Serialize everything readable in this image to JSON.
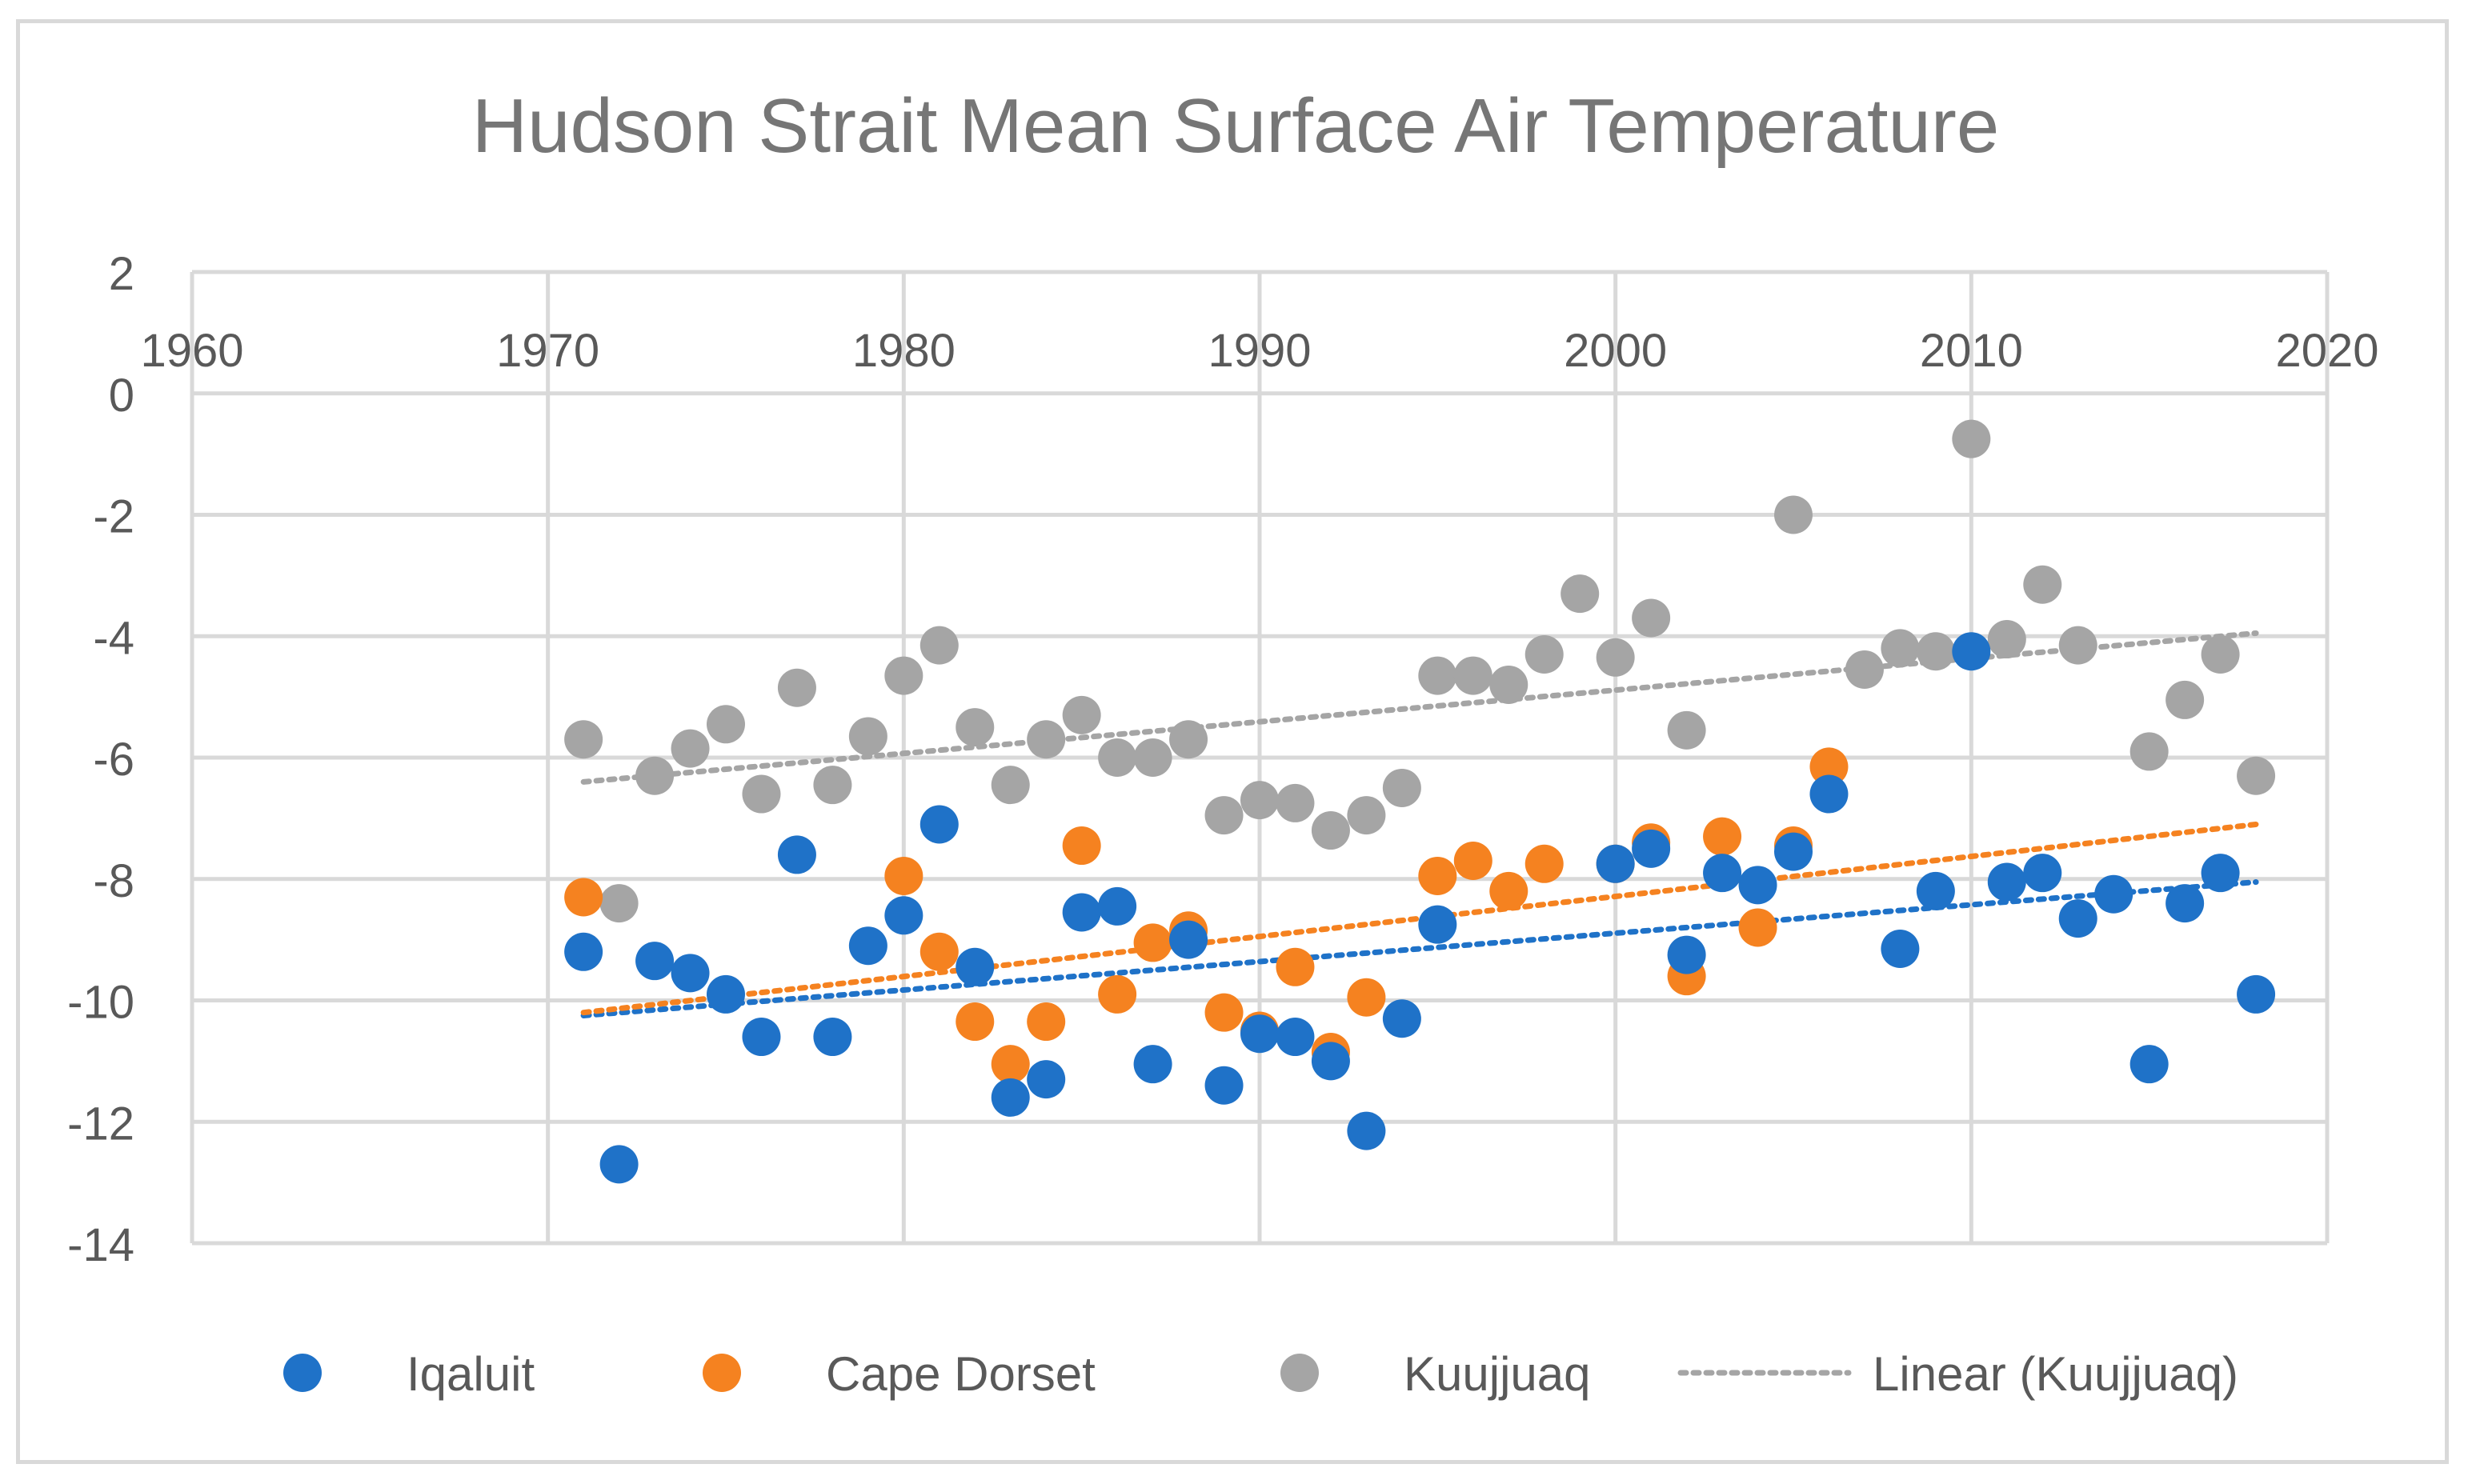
{
  "chart_data": {
    "type": "scatter",
    "title": "Hudson Strait Mean Surface Air Temperature",
    "xlim": [
      1960,
      2020
    ],
    "ylim": [
      -14,
      2
    ],
    "x_ticks": [
      1960,
      1970,
      1980,
      1990,
      2000,
      2010,
      2020
    ],
    "y_ticks": [
      2,
      0,
      -2,
      -4,
      -6,
      -8,
      -10,
      -12,
      -14
    ],
    "x_axis_position": "top (at y = 2)",
    "grid": true,
    "legend_position": "bottom",
    "series": [
      {
        "name": "Iqaluit",
        "color": "#1f72c8",
        "x": [
          1971,
          1972,
          1973,
          1974,
          1975,
          1976,
          1977,
          1978,
          1979,
          1980,
          1981,
          1982,
          1983,
          1984,
          1985,
          1986,
          1987,
          1988,
          1989,
          1990,
          1991,
          1992,
          1993,
          1994,
          1995,
          2000,
          2001,
          2002,
          2003,
          2004,
          2005,
          2006,
          2008,
          2009,
          2010,
          2011,
          2012,
          2013,
          2014,
          2015,
          2016,
          2017,
          2018
        ],
        "y": [
          -9.2,
          -12.7,
          -9.35,
          -9.55,
          -9.9,
          -10.6,
          -7.6,
          -10.6,
          -9.1,
          -8.6,
          -7.1,
          -9.45,
          -11.6,
          -11.3,
          -8.55,
          -8.45,
          -11.05,
          -9.0,
          -11.4,
          -10.55,
          -10.6,
          -11.0,
          -12.15,
          -10.3,
          -8.75,
          -7.75,
          -7.5,
          -9.25,
          -7.9,
          -8.1,
          -7.55,
          -6.6,
          -9.15,
          -8.2,
          -4.25,
          -8.05,
          -7.9,
          -8.65,
          -8.25,
          -11.05,
          -8.4,
          -7.9,
          -9.9
        ]
      },
      {
        "name": "Cape Dorset",
        "color": "#f58220",
        "x": [
          1971,
          1980,
          1981,
          1982,
          1983,
          1984,
          1985,
          1986,
          1987,
          1988,
          1989,
          1990,
          1991,
          1992,
          1993,
          1995,
          1996,
          1997,
          1998,
          2000,
          2001,
          2002,
          2003,
          2004,
          2005,
          2006
        ],
        "y": [
          -8.3,
          -7.95,
          -9.2,
          -10.35,
          -11.05,
          -10.35,
          -7.45,
          -9.9,
          -9.05,
          -8.85,
          -10.2,
          -10.5,
          -9.45,
          -10.85,
          -9.95,
          -7.95,
          -7.7,
          -8.2,
          -7.75,
          -7.75,
          -7.4,
          -9.6,
          -7.3,
          -8.8,
          -7.45,
          -6.15
        ]
      },
      {
        "name": "Kuujjuaq",
        "color": "#a5a5a5",
        "x": [
          1971,
          1972,
          1973,
          1974,
          1975,
          1976,
          1977,
          1978,
          1979,
          1980,
          1981,
          1982,
          1983,
          1984,
          1985,
          1986,
          1987,
          1988,
          1989,
          1990,
          1991,
          1992,
          1993,
          1994,
          1995,
          1996,
          1997,
          1998,
          1999,
          2000,
          2001,
          2002,
          2005,
          2007,
          2008,
          2009,
          2010,
          2011,
          2012,
          2013,
          2015,
          2016,
          2017,
          2018
        ],
        "y": [
          -5.7,
          -8.4,
          -6.3,
          -5.85,
          -5.45,
          -6.6,
          -4.85,
          -6.45,
          -5.65,
          -4.65,
          -4.15,
          -5.5,
          -6.45,
          -5.7,
          -5.3,
          -6.0,
          -6.0,
          -5.7,
          -6.95,
          -6.7,
          -6.75,
          -7.2,
          -6.95,
          -6.5,
          -4.65,
          -4.65,
          -4.8,
          -4.3,
          -3.3,
          -4.35,
          -3.7,
          -5.55,
          -2.0,
          -4.55,
          -4.2,
          -4.25,
          -0.75,
          -4.05,
          -3.15,
          -4.15,
          -5.9,
          -5.05,
          -4.3,
          -6.3
        ]
      }
    ],
    "trendlines": [
      {
        "series": "Iqaluit",
        "type": "linear",
        "color": "#1f72c8",
        "x": [
          1971,
          2018
        ],
        "y": [
          -10.25,
          -8.05
        ]
      },
      {
        "series": "Cape Dorset",
        "type": "linear",
        "color": "#f58220",
        "x": [
          1971,
          2018
        ],
        "y": [
          -10.2,
          -7.1
        ]
      },
      {
        "series": "Kuujjuaq",
        "type": "linear",
        "color": "#a5a5a5",
        "x": [
          1971,
          2018
        ],
        "y": [
          -6.4,
          -3.95
        ]
      }
    ],
    "legend": [
      {
        "label": "Iqaluit",
        "kind": "marker",
        "color": "#1f72c8"
      },
      {
        "label": "Cape Dorset",
        "kind": "marker",
        "color": "#f58220"
      },
      {
        "label": "Kuujjuaq",
        "kind": "marker",
        "color": "#a5a5a5"
      },
      {
        "label": "Linear (Kuujjuaq)",
        "kind": "dotted-line",
        "color": "#a5a5a5"
      }
    ]
  }
}
